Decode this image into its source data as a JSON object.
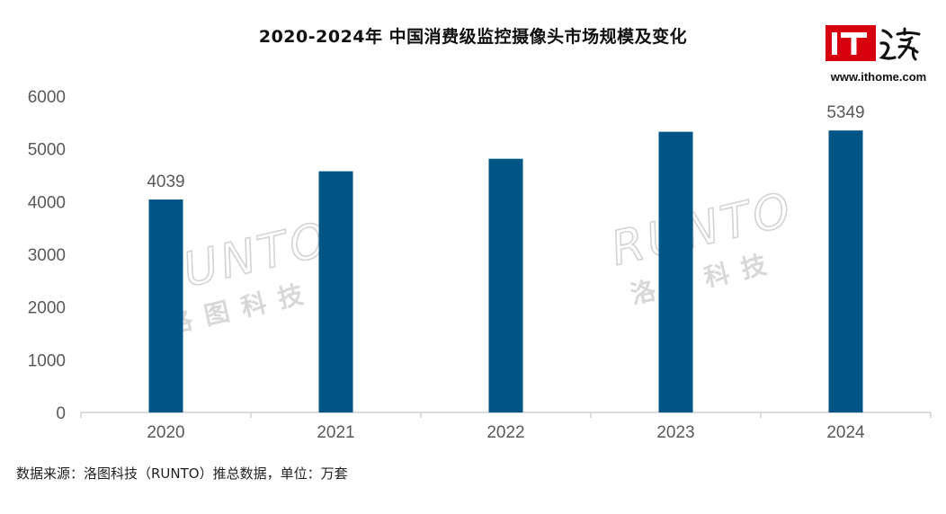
{
  "title": "2020-2024年 中国消费级监控摄像头市场规模及变化",
  "brand": {
    "logo_text": "IT之家",
    "url": "www.ithome.com",
    "logo_red": "#d6000f"
  },
  "watermark": {
    "text_en": "RUNTO",
    "text_cn": "洛图科技"
  },
  "source": "数据来源：洛图科技（RUNTO）推总数据，单位：万套",
  "colors": {
    "bar": "#005587",
    "axis": "#d0d0d0",
    "tick_text": "#595959"
  },
  "chart_data": {
    "type": "bar",
    "categories": [
      "2020",
      "2021",
      "2022",
      "2023",
      "2024"
    ],
    "values": [
      4039,
      4575,
      4812,
      5324,
      5349
    ],
    "data_labels": [
      "4039",
      "",
      "",
      "",
      "5349"
    ],
    "yticks": [
      "0",
      "1000",
      "2000",
      "3000",
      "4000",
      "5000",
      "6000"
    ],
    "ylim": [
      0,
      6000
    ],
    "grid": false,
    "legend": "none"
  }
}
